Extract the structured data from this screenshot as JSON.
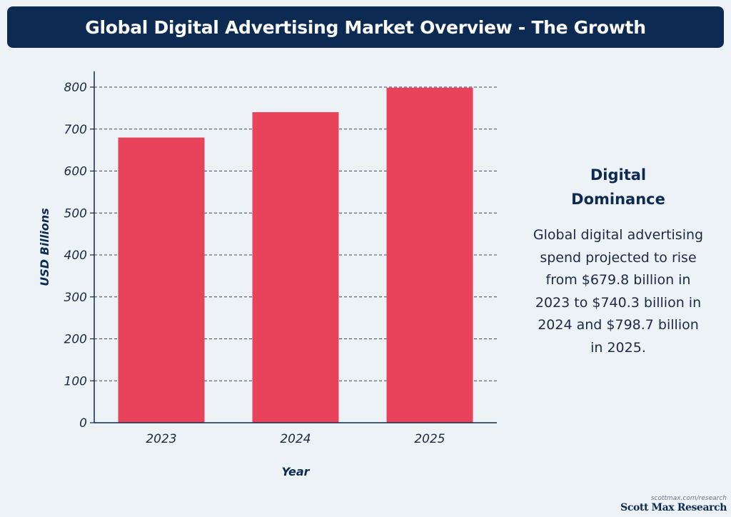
{
  "header": {
    "title": "Global Digital Advertising Market Overview - The Growth"
  },
  "colors": {
    "banner": "#0c2a52",
    "bar": "#e8435a",
    "background": "#edf2f7",
    "grid": "#3a4a66"
  },
  "chart_data": {
    "type": "bar",
    "title": "Global Digital Advertising Market Overview - The Growth",
    "categories": [
      "2023",
      "2024",
      "2025"
    ],
    "values": [
      679.8,
      740.3,
      798.7
    ],
    "xlabel": "Year",
    "ylabel": "USD Billions",
    "ylim": [
      0,
      800
    ],
    "yticks": [
      "0",
      "100",
      "200",
      "300",
      "400",
      "500",
      "600",
      "700",
      "800"
    ],
    "grid": true,
    "grid_style": "dashed"
  },
  "side_panel": {
    "title": "Digital Dominance",
    "body": "Global digital advertising spend projected to rise from $679.8 billion in 2023 to $740.3 billion in 2024 and $798.7 billion in 2025."
  },
  "footer": {
    "url": "scottmax.com/research",
    "brand": "Scott Max Research"
  }
}
